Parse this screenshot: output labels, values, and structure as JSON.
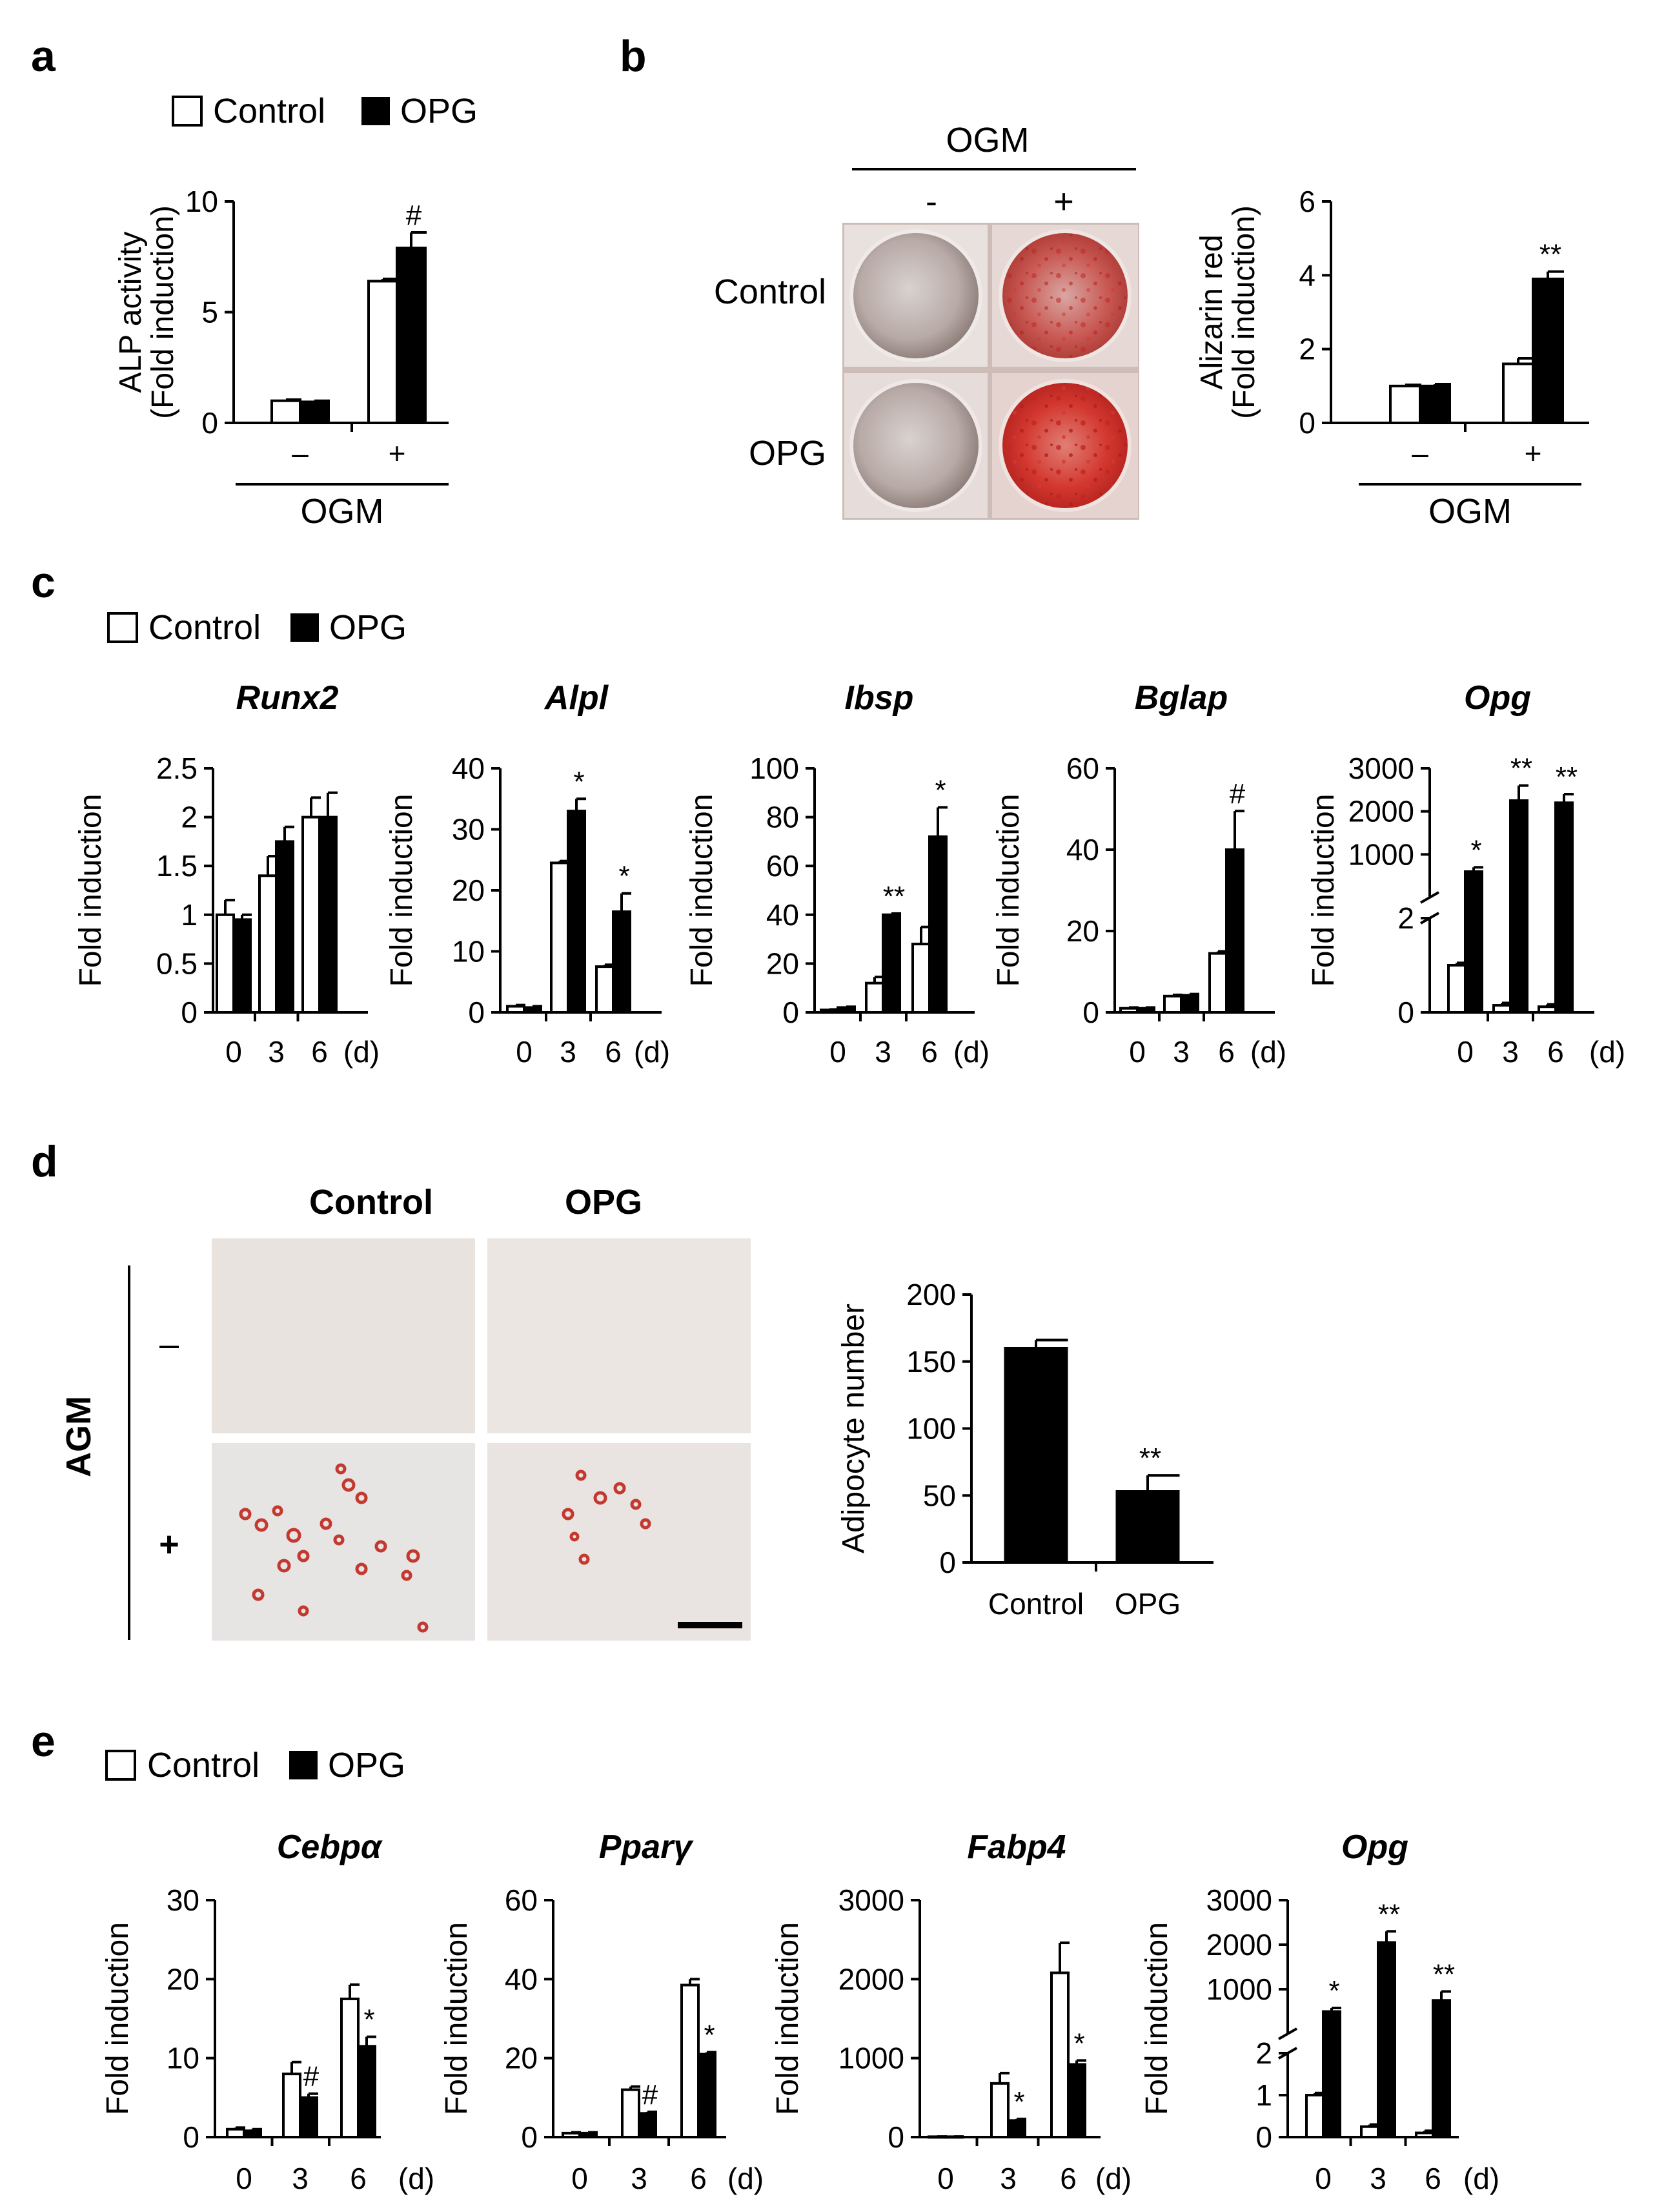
{
  "figure": {
    "panel_labels": [
      "a",
      "b",
      "c",
      "d",
      "e"
    ],
    "legend": [
      {
        "name": "Control",
        "color": "#ffffff"
      },
      {
        "name": "OPG",
        "color": "#000000"
      }
    ],
    "treatment_labels": {
      "minus": "–",
      "plus": "+"
    },
    "ogm_label": "OGM",
    "agm_label": "AGM",
    "panel_b_wells": {
      "header": "OGM",
      "col_labels": [
        "-",
        "+"
      ],
      "row_labels": [
        "Control",
        "OPG"
      ]
    },
    "panel_d_images": {
      "col_labels": [
        "Control",
        "OPG"
      ],
      "row_labels": [
        "–",
        "+"
      ]
    },
    "day_unit": "(d)"
  },
  "chart_data": [
    {
      "id": "a",
      "type": "bar",
      "ylabel": "ALP activity",
      "ylabel2": "(Fold induction)",
      "ylim": [
        0,
        10
      ],
      "yticks": [
        0,
        5,
        10
      ],
      "categories": [
        "–",
        "+"
      ],
      "xgroup_label": "OGM",
      "series": [
        {
          "name": "Control",
          "values": [
            1.0,
            6.4
          ],
          "errors": [
            0.05,
            0.1
          ]
        },
        {
          "name": "OPG",
          "values": [
            0.95,
            7.9
          ],
          "errors": [
            0.05,
            0.7
          ]
        }
      ],
      "annotations": [
        {
          "category": 1,
          "series": 1,
          "text": "#"
        }
      ]
    },
    {
      "id": "b",
      "type": "bar",
      "ylabel": "Alizarin red",
      "ylabel2": "(Fold induction)",
      "ylim": [
        0,
        6
      ],
      "yticks": [
        0,
        2,
        4,
        6
      ],
      "categories": [
        "–",
        "+"
      ],
      "xgroup_label": "OGM",
      "series": [
        {
          "name": "Control",
          "values": [
            1.0,
            1.6
          ],
          "errors": [
            0.03,
            0.15
          ]
        },
        {
          "name": "OPG",
          "values": [
            1.0,
            3.9
          ],
          "errors": [
            0.05,
            0.2
          ]
        }
      ],
      "annotations": [
        {
          "category": 1,
          "series": 1,
          "text": "**"
        }
      ]
    },
    {
      "id": "c-runx2",
      "type": "bar",
      "title": "Runx2",
      "ylabel": "Fold induction",
      "ylim": [
        0,
        2.5
      ],
      "yticks": [
        0,
        0.5,
        1,
        1.5,
        2,
        2.5
      ],
      "yticklabels": [
        "0",
        "0.5",
        "1",
        "1.5",
        "2",
        "2.5"
      ],
      "categories": [
        "0",
        "3",
        "6"
      ],
      "xunit": "(d)",
      "series": [
        {
          "name": "Control",
          "values": [
            1.0,
            1.4,
            2.0
          ],
          "errors": [
            0.15,
            0.2,
            0.2
          ]
        },
        {
          "name": "OPG",
          "values": [
            0.95,
            1.75,
            2.0
          ],
          "errors": [
            0.05,
            0.15,
            0.25
          ]
        }
      ],
      "annotations": []
    },
    {
      "id": "c-alpl",
      "type": "bar",
      "title": "Alpl",
      "ylabel": "Fold induction",
      "ylim": [
        0,
        40
      ],
      "yticks": [
        0,
        10,
        20,
        30,
        40
      ],
      "categories": [
        "0",
        "3",
        "6"
      ],
      "xunit": "(d)",
      "series": [
        {
          "name": "Control",
          "values": [
            1.0,
            24.5,
            7.5
          ],
          "errors": [
            0.2,
            0.3,
            0.3
          ]
        },
        {
          "name": "OPG",
          "values": [
            0.8,
            33.0,
            16.5
          ],
          "errors": [
            0.2,
            2.0,
            3.0
          ]
        }
      ],
      "annotations": [
        {
          "category": 1,
          "series": 1,
          "text": "*"
        },
        {
          "category": 2,
          "series": 1,
          "text": "*"
        }
      ]
    },
    {
      "id": "c-ibsp",
      "type": "bar",
      "title": "Ibsp",
      "ylabel": "Fold induction",
      "ylim": [
        0,
        100
      ],
      "yticks": [
        0,
        20,
        40,
        60,
        80,
        100
      ],
      "categories": [
        "0",
        "3",
        "6"
      ],
      "xunit": "(d)",
      "series": [
        {
          "name": "Control",
          "values": [
            1.0,
            12.0,
            28.0
          ],
          "errors": [
            0.2,
            2.5,
            7.0
          ]
        },
        {
          "name": "OPG",
          "values": [
            2.0,
            40.0,
            72.0
          ],
          "errors": [
            0.3,
            0.5,
            12.0
          ]
        }
      ],
      "annotations": [
        {
          "category": 1,
          "series": 1,
          "text": "**"
        },
        {
          "category": 2,
          "series": 1,
          "text": "*"
        }
      ]
    },
    {
      "id": "c-bglap",
      "type": "bar",
      "title": "Bglap",
      "ylabel": "Fold induction",
      "ylim": [
        0,
        60
      ],
      "yticks": [
        0,
        20,
        40,
        60
      ],
      "categories": [
        "0",
        "3",
        "6"
      ],
      "xunit": "(d)",
      "series": [
        {
          "name": "Control",
          "values": [
            1.0,
            4.0,
            14.5
          ],
          "errors": [
            0.2,
            0.3,
            0.5
          ]
        },
        {
          "name": "OPG",
          "values": [
            1.0,
            4.2,
            40.0
          ],
          "errors": [
            0.2,
            0.3,
            9.5
          ]
        }
      ],
      "annotations": [
        {
          "category": 2,
          "series": 1,
          "text": "#"
        }
      ]
    },
    {
      "id": "c-opg",
      "type": "bar",
      "title": "Opg",
      "ylabel": "Fold induction",
      "broken_axis": true,
      "lower_ylim": [
        0,
        2
      ],
      "lower_yticks": [
        0,
        2
      ],
      "upper_ylim": [
        0,
        3000
      ],
      "upper_yticks": [
        1000,
        2000,
        3000
      ],
      "categories": [
        "0",
        "3",
        "6"
      ],
      "xunit": "(d)",
      "series": [
        {
          "name": "Control",
          "values": [
            1.0,
            0.15,
            0.12
          ],
          "errors": [
            0.05,
            0.05,
            0.05
          ]
        },
        {
          "name": "OPG",
          "values": [
            600,
            2250,
            2200
          ],
          "errors": [
            100,
            350,
            200
          ]
        }
      ],
      "annotations": [
        {
          "category": 0,
          "series": 1,
          "text": "*"
        },
        {
          "category": 1,
          "series": 1,
          "text": "**"
        },
        {
          "category": 2,
          "series": 1,
          "text": "**"
        }
      ]
    },
    {
      "id": "d",
      "type": "bar",
      "ylabel": "Adipocyte number",
      "ylim": [
        0,
        200
      ],
      "yticks": [
        0,
        50,
        100,
        150,
        200
      ],
      "categories": [
        "Control",
        "OPG"
      ],
      "series": [
        {
          "name": "Adipocyte number",
          "values": [
            160,
            53
          ],
          "errors": [
            6,
            12
          ]
        }
      ],
      "annotations": [
        {
          "category": 1,
          "series": 0,
          "text": "**"
        }
      ]
    },
    {
      "id": "e-cebpa",
      "type": "bar",
      "title": "Cebpα",
      "ylabel": "Fold induction",
      "ylim": [
        0,
        30
      ],
      "yticks": [
        0,
        10,
        20,
        30
      ],
      "categories": [
        "0",
        "3",
        "6"
      ],
      "xunit": "(d)",
      "series": [
        {
          "name": "Control",
          "values": [
            1.0,
            8.0,
            17.5
          ],
          "errors": [
            0.2,
            1.5,
            1.8
          ]
        },
        {
          "name": "OPG",
          "values": [
            0.8,
            5.0,
            11.5
          ],
          "errors": [
            0.2,
            0.5,
            1.2
          ]
        }
      ],
      "annotations": [
        {
          "category": 1,
          "series": 1,
          "text": "#"
        },
        {
          "category": 2,
          "series": 1,
          "text": "*"
        }
      ]
    },
    {
      "id": "e-pparg",
      "type": "bar",
      "title": "Pparγ",
      "ylabel": "Fold induction",
      "ylim": [
        0,
        60
      ],
      "yticks": [
        0,
        20,
        40,
        60
      ],
      "categories": [
        "0",
        "3",
        "6"
      ],
      "xunit": "(d)",
      "series": [
        {
          "name": "Control",
          "values": [
            1.0,
            12.0,
            38.5
          ],
          "errors": [
            0.2,
            0.8,
            1.5
          ]
        },
        {
          "name": "OPG",
          "values": [
            1.0,
            6.0,
            21.0
          ],
          "errors": [
            0.2,
            0.4,
            0.5
          ]
        }
      ],
      "annotations": [
        {
          "category": 1,
          "series": 1,
          "text": "#"
        },
        {
          "category": 2,
          "series": 1,
          "text": "*"
        }
      ]
    },
    {
      "id": "e-fabp4",
      "type": "bar",
      "title": "Fabp4",
      "ylabel": "Fold induction",
      "ylim": [
        0,
        3000
      ],
      "yticks": [
        0,
        1000,
        2000,
        3000
      ],
      "categories": [
        "0",
        "3",
        "6"
      ],
      "xunit": "(d)",
      "series": [
        {
          "name": "Control",
          "values": [
            5,
            680,
            2080
          ],
          "errors": [
            2,
            130,
            380
          ]
        },
        {
          "name": "OPG",
          "values": [
            5,
            210,
            920
          ],
          "errors": [
            2,
            20,
            50
          ]
        }
      ],
      "annotations": [
        {
          "category": 1,
          "series": 1,
          "text": "*"
        },
        {
          "category": 2,
          "series": 1,
          "text": "*"
        }
      ]
    },
    {
      "id": "e-opg",
      "type": "bar",
      "title": "Opg",
      "ylabel": "Fold induction",
      "broken_axis": true,
      "lower_ylim": [
        0,
        2
      ],
      "lower_yticks": [
        0,
        1,
        2
      ],
      "upper_ylim": [
        0,
        3000
      ],
      "upper_yticks": [
        1000,
        2000,
        3000
      ],
      "categories": [
        "0",
        "3",
        "6"
      ],
      "xunit": "(d)",
      "series": [
        {
          "name": "Control",
          "values": [
            1.0,
            0.25,
            0.1
          ],
          "errors": [
            0.05,
            0.05,
            0.05
          ]
        },
        {
          "name": "OPG",
          "values": [
            500,
            2050,
            750
          ],
          "errors": [
            80,
            250,
            200
          ]
        }
      ],
      "annotations": [
        {
          "category": 0,
          "series": 1,
          "text": "*"
        },
        {
          "category": 1,
          "series": 1,
          "text": "**"
        },
        {
          "category": 2,
          "series": 1,
          "text": "**"
        }
      ]
    }
  ]
}
